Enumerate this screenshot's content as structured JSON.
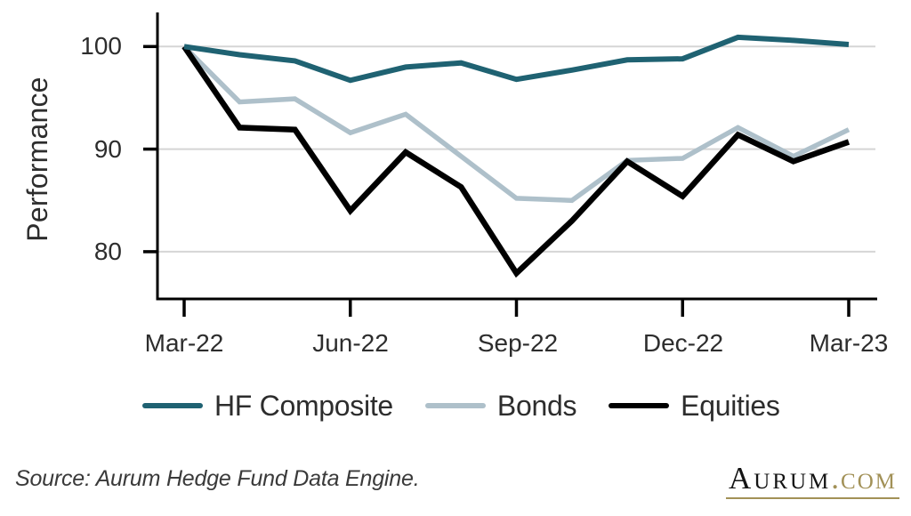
{
  "chart_data": {
    "type": "line",
    "title": "",
    "xlabel": "",
    "ylabel": "Performance",
    "categories": [
      "Mar-22",
      "Apr-22",
      "May-22",
      "Jun-22",
      "Jul-22",
      "Aug-22",
      "Sep-22",
      "Oct-22",
      "Nov-22",
      "Dec-22",
      "Jan-23",
      "Feb-23",
      "Mar-23"
    ],
    "x_tick_labels": [
      "Mar-22",
      "Jun-22",
      "Sep-22",
      "Dec-22",
      "Mar-23"
    ],
    "x_tick_indices": [
      0,
      3,
      6,
      9,
      12
    ],
    "yticks": [
      100,
      90,
      80
    ],
    "ylim": [
      75.4,
      103.3
    ],
    "grid": "horizontal-gridlines-only",
    "legend_position": "bottom",
    "series": [
      {
        "name": "HF Composite",
        "color": "#1f6272",
        "line_width": 6,
        "values": [
          100.0,
          99.2,
          98.6,
          96.7,
          98.0,
          98.4,
          96.8,
          97.7,
          98.7,
          98.8,
          100.9,
          100.6,
          100.2
        ]
      },
      {
        "name": "Bonds",
        "color": "#aec0ca",
        "line_width": 5.5,
        "values": [
          100.0,
          94.6,
          94.9,
          91.6,
          93.4,
          89.3,
          85.2,
          85.0,
          88.9,
          89.1,
          92.1,
          89.3,
          91.9
        ]
      },
      {
        "name": "Equities",
        "color": "#000000",
        "line_width": 6.5,
        "values": [
          100.0,
          92.1,
          91.9,
          84.0,
          89.7,
          86.3,
          77.9,
          83.0,
          88.8,
          85.4,
          91.4,
          88.8,
          90.7
        ]
      }
    ]
  },
  "colors": {
    "axis": "#000000",
    "gridline": "#d5d5d5",
    "text": "#2d2d2d"
  },
  "footer": {
    "source": "Source: Aurum Hedge Fund Data Engine.",
    "logo": {
      "wordmark": "Aurum",
      "suffix": ".com",
      "gold_color": "#a29157"
    }
  }
}
